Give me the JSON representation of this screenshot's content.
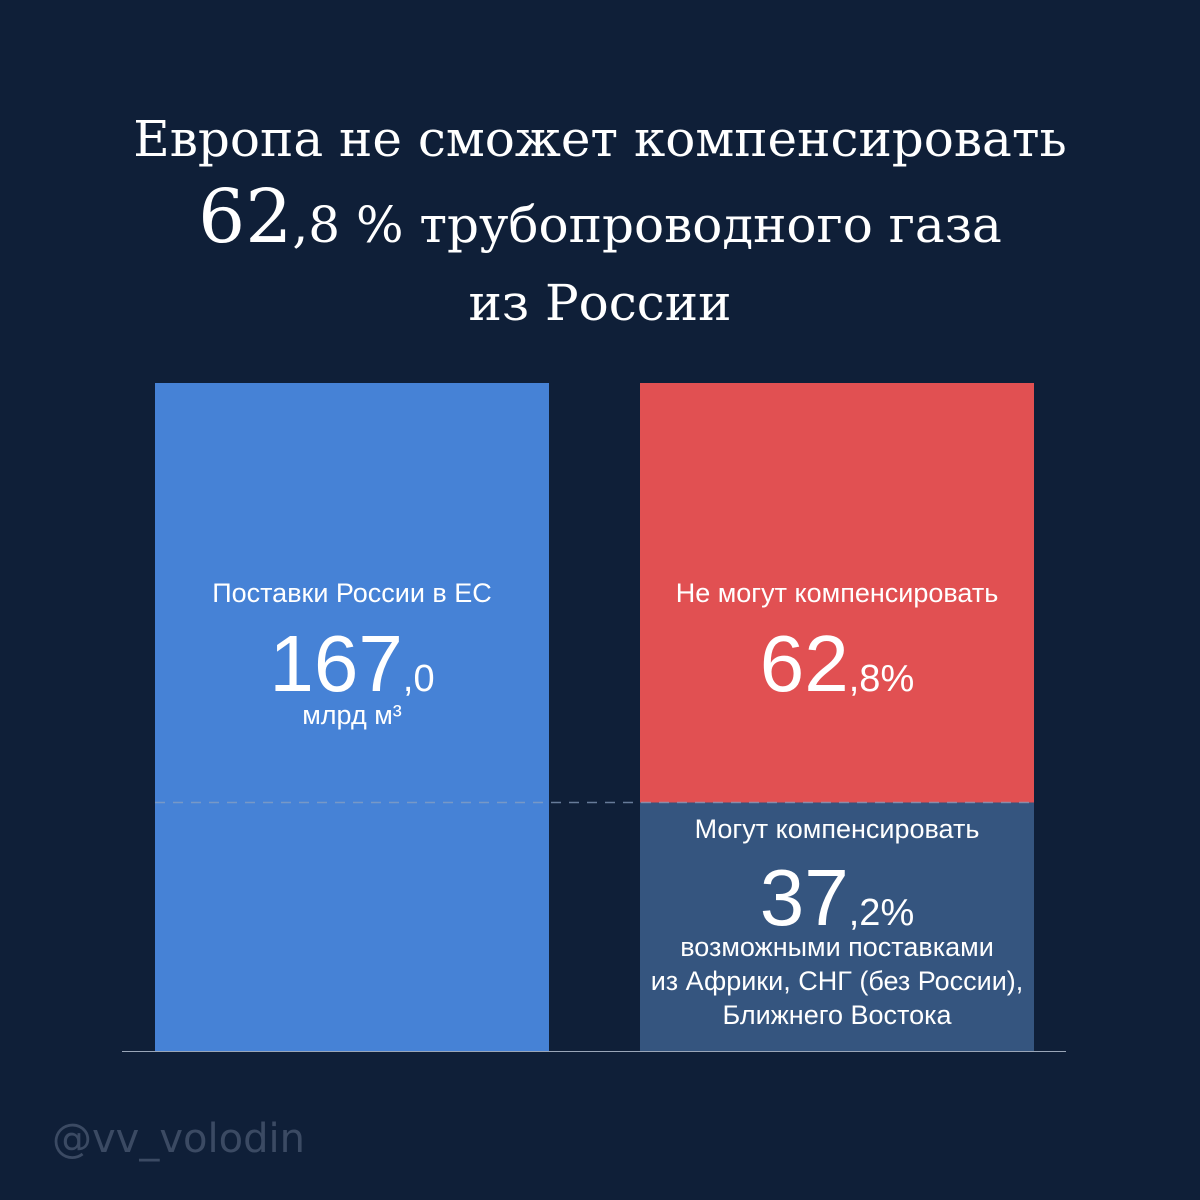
{
  "title": {
    "line1": "Европа не сможет компенсировать",
    "line2_big": "62",
    "line2_rest": ",8 % трубопроводного газа",
    "line3": "из России"
  },
  "colors": {
    "background": "#0f1f38",
    "russia_supply": "#4682d6",
    "cannot_compensate": "#e15052",
    "can_compensate": "#35557f"
  },
  "chart_data": {
    "type": "bar",
    "stacked": true,
    "categories": [
      "Поставки России в ЕС",
      "Не могут компенсировать / Могут компенсировать"
    ],
    "series": [
      {
        "name": "Поставки России в ЕС",
        "values": [
          100,
          0
        ]
      },
      {
        "name": "Не могут компенсировать",
        "values": [
          0,
          62.8
        ]
      },
      {
        "name": "Могут компенсировать",
        "values": [
          0,
          37.2
        ]
      }
    ],
    "ylim": [
      0,
      100
    ]
  },
  "bars": {
    "supply": {
      "label": "Поставки России в ЕС",
      "value_int": "167",
      "value_dec": ",0",
      "unit": "млрд м³"
    },
    "cannot": {
      "label": "Не могут компенсировать",
      "value_int": "62",
      "value_dec": ",8%"
    },
    "can": {
      "label": "Могут компенсировать",
      "value_int": "37",
      "value_dec": ",2%",
      "note1": "возможными поставками",
      "note2": "из Африки, СНГ (без России),",
      "note3": "Ближнего Востока"
    }
  },
  "handle": "@vv_volodin"
}
